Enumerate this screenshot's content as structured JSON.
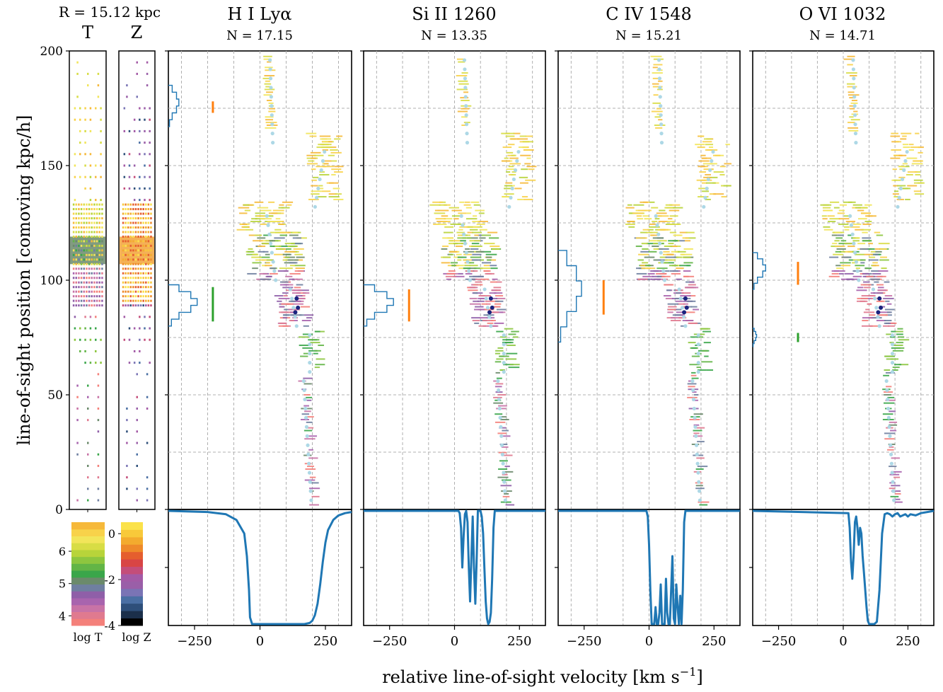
{
  "figure": {
    "radius_label": "R = 15.12 kpc",
    "ylabel_main": "line-of-sight position [comoving kpc/h]",
    "xlabel_main": "relative line-of-sight velocity [km s",
    "xlabel_sup": "−1",
    "xlabel_end": "]"
  },
  "colors": {
    "axis": "#000000",
    "grid": "#b0b0b0",
    "sightline_blue": "#1f77b4",
    "orange": "#ff7f0e",
    "green": "#2ca02c",
    "light_blue": "#add8e6",
    "dark_blue": "#1a237e"
  },
  "columns": {
    "T": {
      "label": "T",
      "colorbar_label": "log T",
      "ticks": [
        "6",
        "5",
        "4"
      ],
      "tick_values": [
        6,
        5,
        4
      ],
      "range": [
        3.7,
        6.9
      ]
    },
    "Z": {
      "label": "Z",
      "colorbar_label": "log Z",
      "ticks": [
        "0",
        "-2",
        "-4"
      ],
      "tick_values": [
        0,
        -2,
        -4
      ],
      "range": [
        -4,
        0.5
      ]
    }
  },
  "chart_data": [
    {
      "type": "scatter",
      "title": "H I Lyα",
      "subtitle": "N = 17.15",
      "xlim": [
        -350,
        350
      ],
      "ylim": [
        0,
        200
      ],
      "xticks": [
        -250,
        0,
        250
      ],
      "xtick_labels": [
        "−250",
        "0",
        "250"
      ],
      "yticks": [
        0,
        50,
        100,
        150,
        200
      ],
      "ytick_labels": [
        "0",
        "50",
        "100",
        "150",
        "200"
      ],
      "grid": true,
      "clouds": [
        {
          "color": "orange",
          "velocity": -180,
          "y": [
            173,
            178
          ]
        },
        {
          "color": "green",
          "velocity": -180,
          "y": [
            82,
            97
          ]
        }
      ],
      "histograms": [
        {
          "y_center": 176,
          "y_halfwidth": 9,
          "peak_velocity": -310
        },
        {
          "y_center": 89,
          "y_halfwidth": 9,
          "peak_velocity": -240
        }
      ],
      "spectrum": {
        "type": "line",
        "x": [
          -350,
          -200,
          -130,
          -90,
          -60,
          -50,
          -42,
          -38,
          -30,
          0,
          100,
          170,
          190,
          200,
          210,
          220,
          230,
          240,
          250,
          260,
          280,
          300,
          325,
          350
        ],
        "y": [
          1.0,
          0.99,
          0.97,
          0.92,
          0.8,
          0.6,
          0.3,
          0.06,
          0.0,
          0.0,
          0.0,
          0.0,
          0.01,
          0.03,
          0.08,
          0.18,
          0.35,
          0.55,
          0.72,
          0.83,
          0.92,
          0.96,
          0.98,
          0.99
        ]
      }
    },
    {
      "type": "scatter",
      "title": "Si II 1260",
      "subtitle": "N = 13.35",
      "xlim": [
        -350,
        350
      ],
      "ylim": [
        0,
        200
      ],
      "xticks": [
        -250,
        0,
        250
      ],
      "xtick_labels": [
        "−250",
        "0",
        "250"
      ],
      "yticks": [
        0,
        50,
        100,
        150,
        200
      ],
      "grid": true,
      "clouds": [
        {
          "color": "orange",
          "velocity": -175,
          "y": [
            82,
            96
          ]
        }
      ],
      "histograms": [
        {
          "y_center": 89,
          "y_halfwidth": 9,
          "peak_velocity": -235
        }
      ],
      "spectrum": {
        "type": "line",
        "x": [
          -350,
          15,
          20,
          25,
          30,
          35,
          40,
          45,
          50,
          55,
          60,
          65,
          70,
          75,
          80,
          85,
          90,
          95,
          100,
          105,
          110,
          115,
          120,
          125,
          130,
          135,
          140,
          145,
          150,
          155,
          350
        ],
        "y": [
          1.0,
          1.0,
          0.98,
          0.85,
          0.5,
          0.78,
          0.97,
          1.0,
          0.9,
          0.5,
          0.2,
          0.6,
          0.95,
          0.5,
          0.18,
          0.55,
          1.0,
          1.0,
          1.0,
          0.95,
          0.8,
          0.5,
          0.2,
          0.05,
          0.0,
          0.02,
          0.1,
          0.4,
          0.85,
          1.0,
          1.0
        ]
      }
    },
    {
      "type": "scatter",
      "title": "C IV 1548",
      "subtitle": "N = 15.21",
      "xlim": [
        -350,
        350
      ],
      "ylim": [
        0,
        200
      ],
      "xticks": [
        -250,
        0,
        250
      ],
      "xtick_labels": [
        "−250",
        "0",
        "250"
      ],
      "yticks": [
        0,
        50,
        100,
        150,
        200
      ],
      "grid": true,
      "clouds": [
        {
          "color": "orange",
          "velocity": -175,
          "y": [
            85,
            100
          ]
        }
      ],
      "histograms": [
        {
          "y_center": 93,
          "y_halfwidth": 20,
          "peak_velocity": -260
        }
      ],
      "spectrum": {
        "type": "line",
        "x": [
          -350,
          -10,
          -5,
          0,
          5,
          10,
          15,
          20,
          25,
          30,
          35,
          40,
          45,
          50,
          55,
          60,
          65,
          70,
          75,
          80,
          85,
          90,
          95,
          100,
          105,
          110,
          115,
          120,
          125,
          130,
          135,
          140,
          145,
          150,
          155,
          350
        ],
        "y": [
          1.0,
          1.0,
          0.95,
          0.7,
          0.3,
          0.0,
          0.0,
          0.0,
          0.15,
          0.0,
          0.0,
          0.1,
          0.35,
          0.0,
          0.0,
          0.0,
          0.4,
          0.1,
          0.0,
          0.0,
          0.3,
          0.6,
          0.05,
          0.0,
          0.35,
          0.15,
          0.0,
          0.25,
          0.0,
          0.3,
          0.9,
          1.0,
          1.0,
          1.0,
          1.0,
          1.0
        ]
      }
    },
    {
      "type": "scatter",
      "title": "O VI 1032",
      "subtitle": "N = 14.71",
      "xlim": [
        -350,
        350
      ],
      "ylim": [
        0,
        200
      ],
      "xticks": [
        -250,
        0,
        250
      ],
      "xtick_labels": [
        "−250",
        "0",
        "250"
      ],
      "yticks": [
        0,
        50,
        100,
        150,
        200
      ],
      "grid": true,
      "clouds": [
        {
          "color": "orange",
          "velocity": -175,
          "y": [
            98,
            108
          ]
        },
        {
          "color": "green",
          "velocity": -175,
          "y": [
            73,
            77
          ]
        }
      ],
      "histograms": [
        {
          "y_center": 104,
          "y_halfwidth": 8,
          "peak_velocity": -300
        },
        {
          "y_center": 75,
          "y_halfwidth": 4,
          "peak_velocity": -335
        }
      ],
      "spectrum": {
        "type": "line",
        "x": [
          -350,
          20,
          25,
          30,
          35,
          40,
          45,
          50,
          55,
          60,
          65,
          70,
          75,
          80,
          85,
          90,
          95,
          100,
          105,
          110,
          120,
          130,
          140,
          150,
          160,
          170,
          180,
          190,
          200,
          210,
          220,
          230,
          240,
          250,
          260,
          280,
          300,
          325,
          350
        ],
        "y": [
          1.0,
          0.98,
          0.85,
          0.55,
          0.4,
          0.6,
          0.9,
          0.95,
          0.85,
          0.7,
          0.85,
          0.8,
          0.6,
          0.45,
          0.3,
          0.15,
          0.03,
          0.0,
          0.0,
          0.0,
          0.0,
          0.02,
          0.3,
          0.8,
          0.97,
          0.98,
          0.97,
          0.95,
          0.97,
          0.98,
          0.95,
          0.96,
          0.97,
          0.95,
          0.97,
          0.96,
          0.98,
          0.99,
          1.0
        ]
      }
    }
  ]
}
